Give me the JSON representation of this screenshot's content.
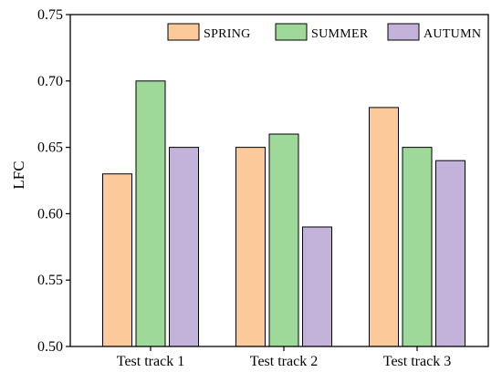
{
  "chart_data": {
    "type": "bar",
    "title": "",
    "xlabel": "",
    "ylabel": "LFC",
    "ylim": [
      0.5,
      0.75
    ],
    "yticks": [
      "0.50",
      "0.55",
      "0.60",
      "0.65",
      "0.70",
      "0.75"
    ],
    "categories": [
      "Test track 1",
      "Test track 2",
      "Test track 3"
    ],
    "series": [
      {
        "name": "SPRING",
        "color": "#FCCA9A",
        "values": [
          0.63,
          0.65,
          0.68
        ]
      },
      {
        "name": "SUMMER",
        "color": "#9FD99A",
        "values": [
          0.7,
          0.66,
          0.65
        ]
      },
      {
        "name": "AUTUMN",
        "color": "#C3B3DA",
        "values": [
          0.65,
          0.59,
          0.64
        ]
      }
    ],
    "legend_position": "top-right",
    "grid": false
  }
}
